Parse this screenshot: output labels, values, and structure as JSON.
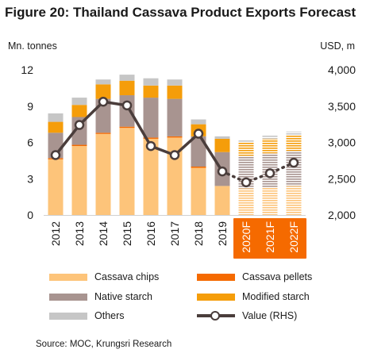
{
  "title": "Figure 20: Thailand Cassava Product Exports Forecast",
  "source": "Source: MOC, Krungsri Research",
  "chart_data": {
    "type": "bar",
    "stacked": true,
    "title": "Figure 20: Thailand Cassava Product Exports Forecast",
    "ylabel_left": "Mn. tonnes",
    "ylabel_right": "USD, m",
    "categories": [
      "2012",
      "2013",
      "2014",
      "2015",
      "2016",
      "2017",
      "2018",
      "2019",
      "2020F",
      "2021F",
      "2022F"
    ],
    "forecast_categories": [
      "2020F",
      "2021F",
      "2022F"
    ],
    "ylim_left": [
      0,
      12
    ],
    "yticks_left": [
      0,
      3,
      6,
      9,
      12
    ],
    "ylim_right": [
      2000,
      4000
    ],
    "yticks_right": [
      "2,000",
      "2,500",
      "3,000",
      "3,500",
      "4,000"
    ],
    "yticks_right_values": [
      2000,
      2500,
      3000,
      3500,
      4000
    ],
    "grid": false,
    "series": [
      {
        "name": "Cassava chips",
        "color": "#fdc47a",
        "values": [
          4.6,
          5.7,
          6.7,
          7.2,
          6.3,
          6.4,
          3.9,
          2.4,
          2.2,
          2.3,
          2.4
        ]
      },
      {
        "name": "Cassava pellets",
        "color": "#f56a00",
        "values": [
          0.1,
          0.1,
          0.1,
          0.1,
          0.1,
          0.1,
          0.1,
          0.0,
          0.0,
          0.0,
          0.0
        ]
      },
      {
        "name": "Native starch",
        "color": "#a89490",
        "values": [
          2.1,
          2.3,
          2.8,
          2.6,
          3.3,
          3.1,
          2.5,
          2.8,
          2.7,
          2.8,
          2.9
        ]
      },
      {
        "name": "Modified starch",
        "color": "#f59d0a",
        "values": [
          0.9,
          1.0,
          1.2,
          1.2,
          1.0,
          1.1,
          1.0,
          1.1,
          1.1,
          1.2,
          1.3
        ]
      },
      {
        "name": "Others",
        "color": "#c6c6c6",
        "values": [
          0.7,
          0.6,
          0.4,
          0.5,
          0.6,
          0.5,
          0.4,
          0.2,
          0.2,
          0.3,
          0.3
        ]
      }
    ],
    "line_series": {
      "name": "Value (RHS)",
      "axis": "right",
      "color": "#4a3d3b",
      "values": [
        2825,
        3240,
        3560,
        3510,
        2950,
        2825,
        3120,
        2600,
        2450,
        2575,
        2720
      ]
    },
    "legend_position": "bottom"
  },
  "legend": {
    "items": [
      {
        "label": "Cassava chips",
        "color": "#fdc47a"
      },
      {
        "label": "Cassava pellets",
        "color": "#f56a00"
      },
      {
        "label": "Native starch",
        "color": "#a89490"
      },
      {
        "label": "Modified starch",
        "color": "#f59d0a"
      },
      {
        "label": "Others",
        "color": "#c6c6c6"
      },
      {
        "label": "Value (RHS)",
        "color": "#4a3d3b"
      }
    ]
  },
  "colors": {
    "forecast_highlight": "#f56a00",
    "axis_text": "#1a1a1a"
  }
}
